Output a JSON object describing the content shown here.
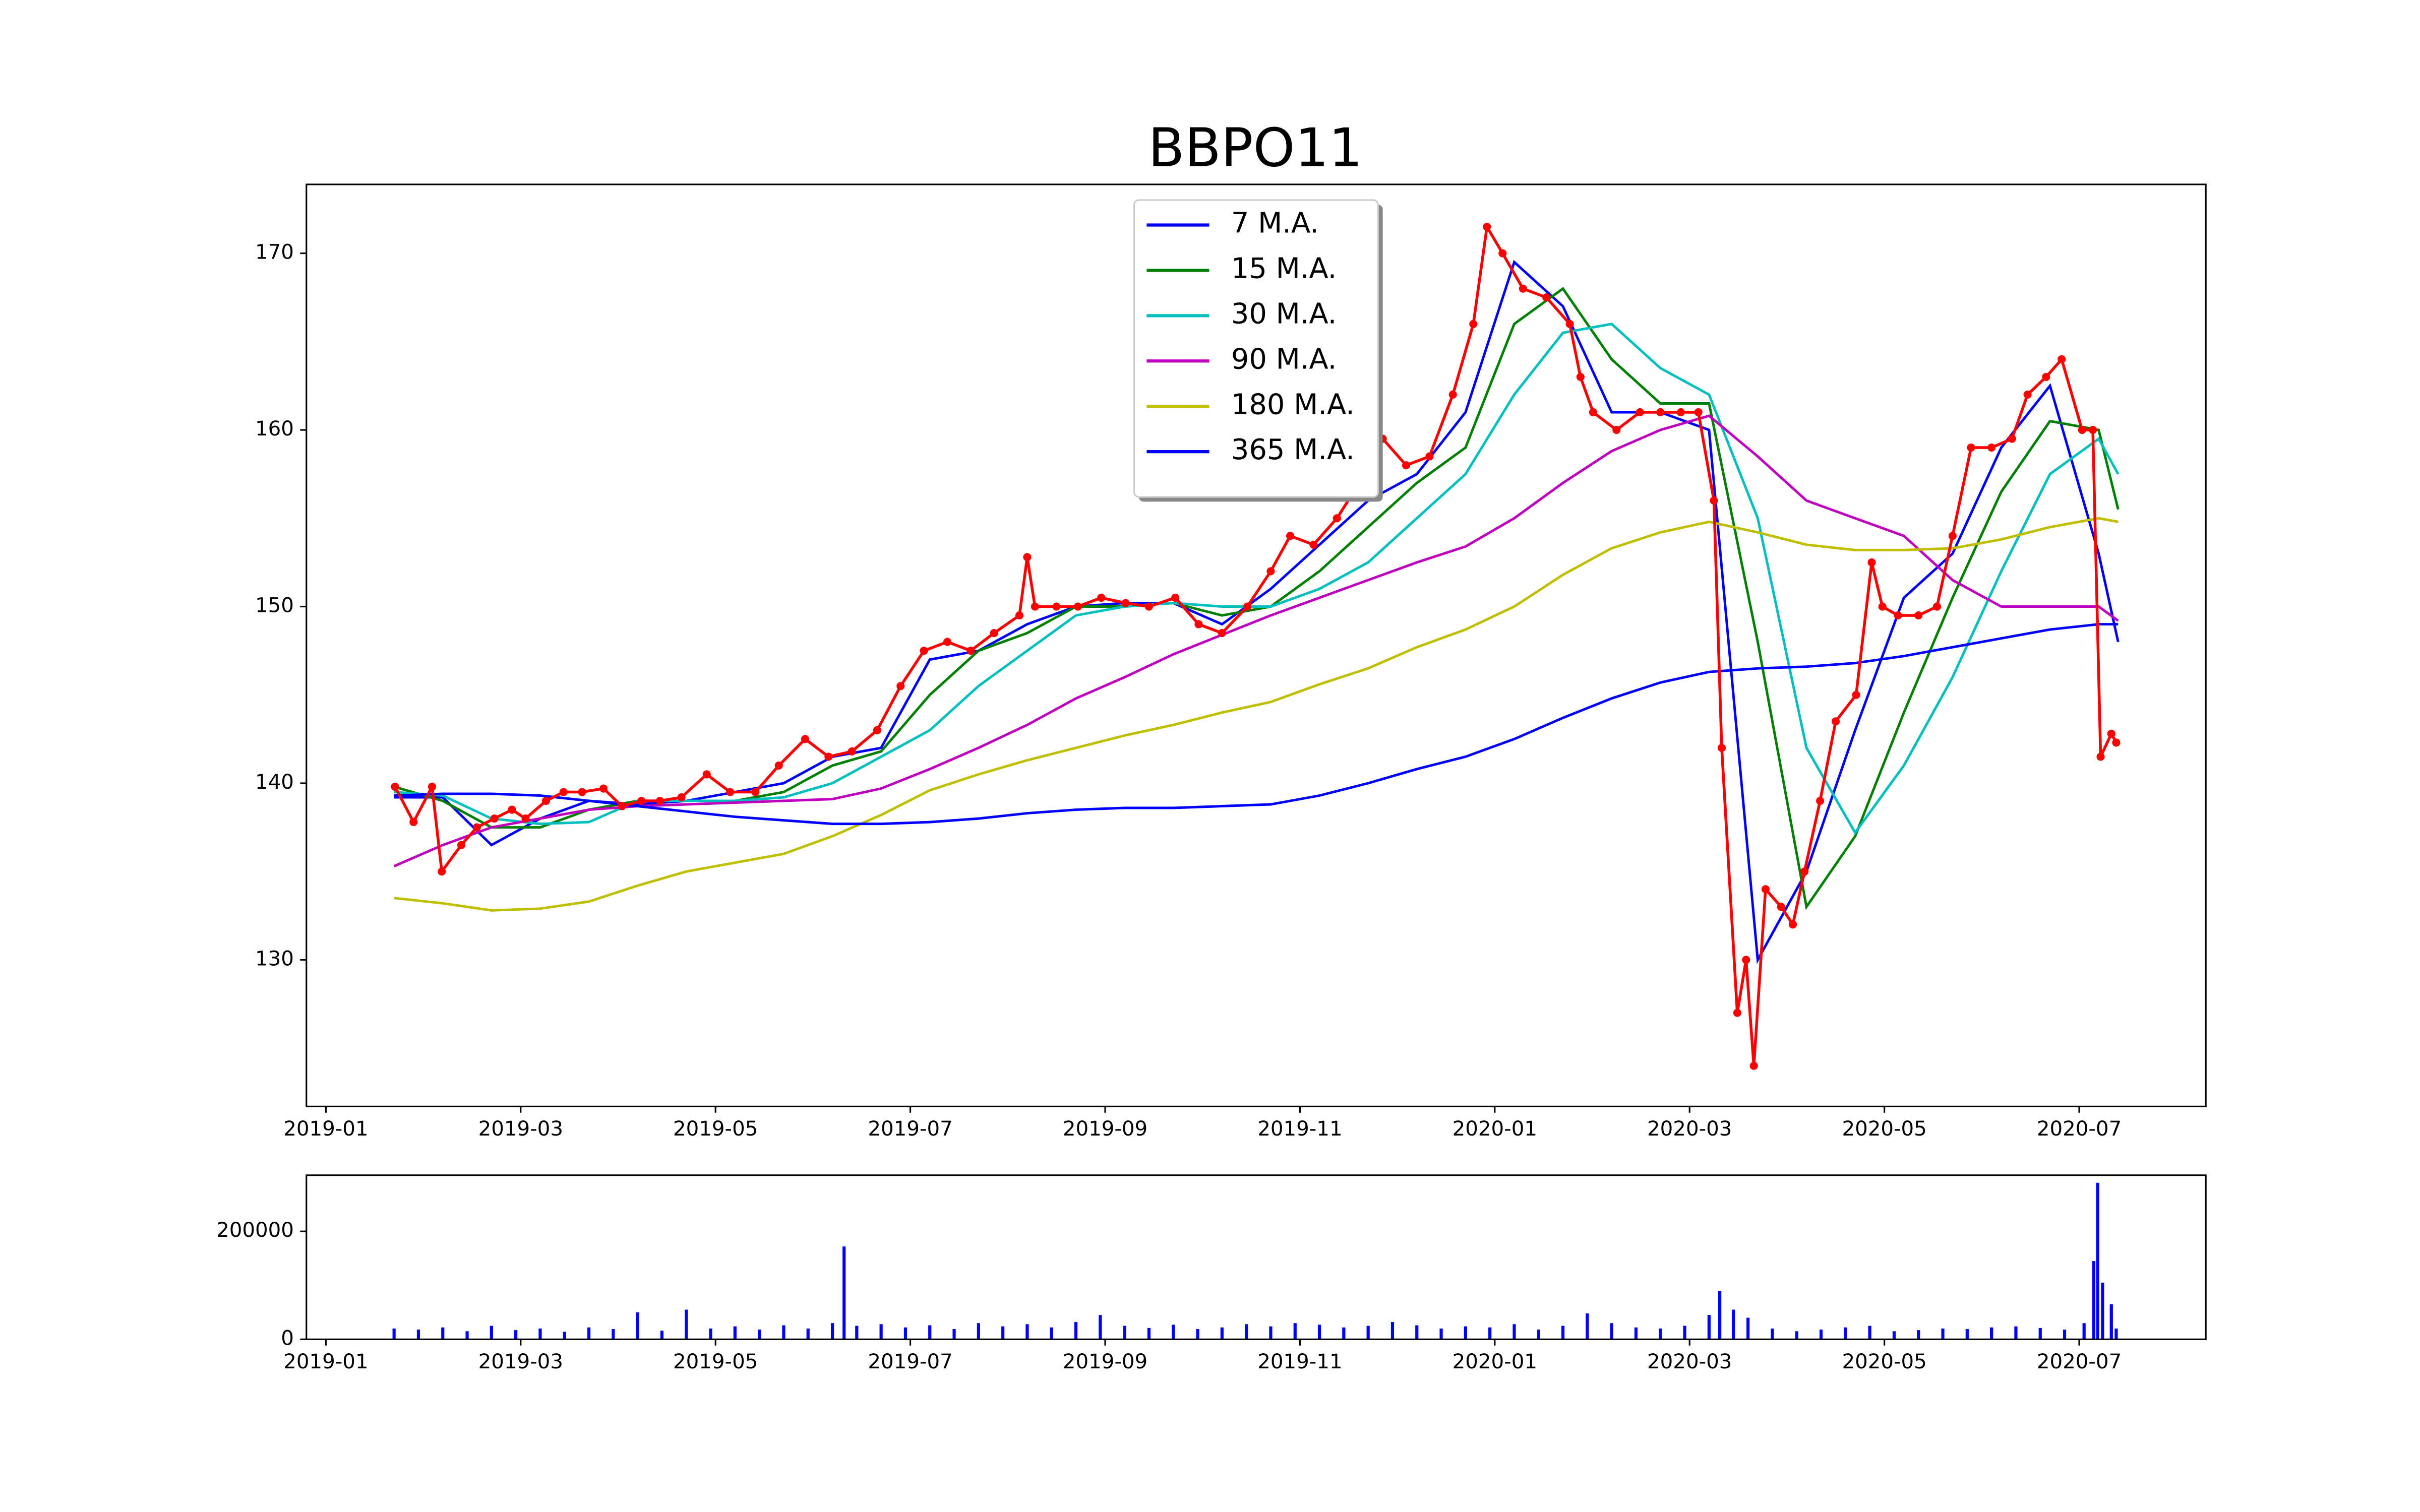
{
  "chart_data": [
    {
      "type": "line",
      "title": "BBPO11",
      "legend": "upper center",
      "xlim": [
        -0.2,
        19.3
      ],
      "xticks": [
        {
          "value": 0,
          "label": "2019-01"
        },
        {
          "value": 2,
          "label": "2019-03"
        },
        {
          "value": 4,
          "label": "2019-05"
        },
        {
          "value": 6,
          "label": "2019-07"
        },
        {
          "value": 8,
          "label": "2019-09"
        },
        {
          "value": 10,
          "label": "2019-11"
        },
        {
          "value": 12,
          "label": "2020-01"
        },
        {
          "value": 14,
          "label": "2020-03"
        },
        {
          "value": 16,
          "label": "2020-05"
        },
        {
          "value": 18,
          "label": "2020-07"
        }
      ],
      "ylim": [
        121.7,
        173.9
      ],
      "yticks": [
        130,
        140,
        150,
        160,
        170
      ],
      "x": [
        0.7,
        1.2,
        1.7,
        2.2,
        2.7,
        3.2,
        3.7,
        4.2,
        4.7,
        5.2,
        5.7,
        6.2,
        6.7,
        7.2,
        7.7,
        8.2,
        8.7,
        9.2,
        9.7,
        10.2,
        10.7,
        11.2,
        11.7,
        12.2,
        12.7,
        13.2,
        13.7,
        14.2,
        14.7,
        15.2,
        15.7,
        16.2,
        16.7,
        17.2,
        17.7,
        18.2,
        18.4
      ],
      "series": [
        {
          "name": "7 M.A.",
          "color": "#0000ff",
          "values": [
            139.2,
            139.2,
            136.5,
            138,
            139,
            138.8,
            139,
            139.5,
            140,
            141.5,
            142,
            147,
            147.5,
            149,
            150,
            150.2,
            150.2,
            149,
            151,
            153.5,
            156,
            157.5,
            161,
            169.5,
            167,
            161,
            161,
            160,
            130,
            135,
            143,
            150.5,
            153,
            159,
            162.5,
            153,
            148
          ]
        },
        {
          "name": "15 M.A.",
          "color": "#008000",
          "values": [
            139.8,
            139,
            137.5,
            137.5,
            138.5,
            139,
            139,
            139,
            139.5,
            141,
            141.8,
            145,
            147.5,
            148.5,
            150,
            150,
            150.2,
            149.5,
            150,
            152,
            154.5,
            157,
            159,
            166,
            168,
            164,
            161.5,
            161.5,
            148,
            133,
            137,
            144,
            150.5,
            156.5,
            160.5,
            160,
            155.5
          ]
        },
        {
          "name": "30 M.A.",
          "color": "#00bfbf",
          "values": [
            139.5,
            139.3,
            138,
            137.7,
            137.8,
            139,
            139,
            139,
            139.2,
            140,
            141.5,
            143,
            145.5,
            147.5,
            149.5,
            150,
            150.2,
            150,
            150,
            151,
            152.5,
            155,
            157.5,
            162,
            165.5,
            166,
            163.5,
            162,
            155,
            142,
            137.2,
            141,
            146,
            152,
            157.5,
            159.5,
            157.5
          ]
        },
        {
          "name": "90 M.A.",
          "color": "#bf00bf",
          "values": [
            135.3,
            136.5,
            137.5,
            138,
            138.5,
            138.7,
            138.8,
            138.9,
            139,
            139.1,
            139.7,
            140.8,
            142,
            143.3,
            144.8,
            146,
            147.3,
            148.4,
            149.5,
            150.5,
            151.5,
            152.5,
            153.4,
            155,
            157,
            158.8,
            160,
            160.8,
            158.5,
            156,
            155,
            154,
            151.5,
            150,
            150,
            150,
            149.2
          ]
        },
        {
          "name": "180 M.A.",
          "color": "#bfbf00",
          "values": [
            133.5,
            133.2,
            132.8,
            132.9,
            133.3,
            134.2,
            135,
            135.5,
            136,
            137,
            138.2,
            139.6,
            140.5,
            141.3,
            142,
            142.7,
            143.3,
            144,
            144.6,
            145.6,
            146.5,
            147.7,
            148.7,
            150,
            151.8,
            153.3,
            154.2,
            154.8,
            154.2,
            153.5,
            153.2,
            153.2,
            153.3,
            153.8,
            154.5,
            155,
            154.8
          ]
        },
        {
          "name": "365 M.A.",
          "color": "#0000ff",
          "values": [
            139.3,
            139.4,
            139.4,
            139.3,
            139,
            138.7,
            138.4,
            138.1,
            137.9,
            137.7,
            137.7,
            137.8,
            138,
            138.3,
            138.5,
            138.6,
            138.6,
            138.7,
            138.8,
            139.3,
            140,
            140.8,
            141.5,
            142.5,
            143.7,
            144.8,
            145.7,
            146.3,
            146.5,
            146.6,
            146.8,
            147.2,
            147.7,
            148.2,
            148.7,
            149,
            149
          ]
        }
      ],
      "price": {
        "color": "#ff0000",
        "marker": true,
        "x": [
          0.71,
          0.9,
          1.09,
          1.19,
          1.39,
          1.55,
          1.73,
          1.91,
          2.05,
          2.26,
          2.44,
          2.63,
          2.85,
          3.04,
          3.24,
          3.43,
          3.65,
          3.91,
          4.15,
          4.41,
          4.65,
          4.92,
          5.16,
          5.4,
          5.66,
          5.9,
          6.14,
          6.38,
          6.62,
          6.86,
          7.12,
          7.2,
          7.28,
          7.5,
          7.72,
          7.96,
          8.21,
          8.45,
          8.72,
          8.96,
          9.2,
          9.46,
          9.7,
          9.9,
          10.14,
          10.38,
          10.61,
          10.85,
          11.09,
          11.33,
          11.57,
          11.78,
          11.92,
          12.08,
          12.29,
          12.53,
          12.77,
          12.88,
          13.01,
          13.25,
          13.49,
          13.7,
          13.91,
          14.09,
          14.25,
          14.33,
          14.49,
          14.58,
          14.66,
          14.78,
          14.94,
          15.06,
          15.18,
          15.34,
          15.5,
          15.71,
          15.87,
          15.98,
          16.14,
          16.35,
          16.54,
          16.7,
          16.89,
          17.1,
          17.31,
          17.47,
          17.66,
          17.82,
          18.03,
          18.14,
          18.22,
          18.33,
          18.38
        ],
        "values": [
          139.8,
          137.8,
          139.8,
          135,
          136.5,
          137.5,
          138,
          138.5,
          138,
          139,
          139.5,
          139.5,
          139.7,
          138.7,
          139,
          139,
          139.2,
          140.5,
          139.5,
          139.5,
          141,
          142.5,
          141.5,
          141.8,
          143,
          145.5,
          147.5,
          148,
          147.5,
          148.5,
          149.5,
          152.8,
          150,
          150,
          150,
          150.5,
          150.2,
          150,
          150.5,
          149,
          148.5,
          150,
          152,
          154,
          153.5,
          155,
          157,
          159.5,
          158,
          158.5,
          162,
          166,
          171.5,
          170,
          168,
          167.5,
          166,
          163,
          161,
          160,
          161,
          161,
          161,
          161,
          156,
          142,
          127,
          130,
          124,
          134,
          133,
          132,
          135,
          139,
          143.5,
          145,
          152.5,
          150,
          149.5,
          149.5,
          150,
          154,
          159,
          159,
          159.5,
          162,
          163,
          164,
          160,
          160,
          141.5,
          142.8,
          142.3
        ]
      }
    },
    {
      "type": "bar",
      "color": "#0000ff",
      "xlim": [
        -0.2,
        19.3
      ],
      "xticks": [
        {
          "value": 0,
          "label": "2019-01"
        },
        {
          "value": 2,
          "label": "2019-03"
        },
        {
          "value": 4,
          "label": "2019-05"
        },
        {
          "value": 6,
          "label": "2019-07"
        },
        {
          "value": 8,
          "label": "2019-09"
        },
        {
          "value": 10,
          "label": "2019-11"
        },
        {
          "value": 12,
          "label": "2020-01"
        },
        {
          "value": 14,
          "label": "2020-03"
        },
        {
          "value": 16,
          "label": "2020-05"
        },
        {
          "value": 18,
          "label": "2020-07"
        }
      ],
      "ylim": [
        0,
        304000
      ],
      "yticks": [
        0,
        200000
      ],
      "x": [
        0.7,
        0.95,
        1.2,
        1.45,
        1.7,
        1.95,
        2.2,
        2.45,
        2.7,
        2.95,
        3.2,
        3.45,
        3.7,
        3.95,
        4.2,
        4.45,
        4.7,
        4.95,
        5.2,
        5.32,
        5.45,
        5.7,
        5.95,
        6.2,
        6.45,
        6.7,
        6.95,
        7.2,
        7.45,
        7.7,
        7.95,
        8.2,
        8.45,
        8.7,
        8.95,
        9.2,
        9.45,
        9.7,
        9.95,
        10.2,
        10.45,
        10.7,
        10.95,
        11.2,
        11.45,
        11.7,
        11.95,
        12.2,
        12.45,
        12.7,
        12.95,
        13.2,
        13.45,
        13.7,
        13.95,
        14.2,
        14.31,
        14.45,
        14.6,
        14.85,
        15.1,
        15.35,
        15.6,
        15.85,
        16.1,
        16.35,
        16.6,
        16.85,
        17.1,
        17.35,
        17.6,
        17.85,
        18.05,
        18.15,
        18.19,
        18.24,
        18.33,
        18.38
      ],
      "values": [
        20000,
        18000,
        22000,
        15000,
        25000,
        17000,
        20000,
        14000,
        22000,
        19000,
        50000,
        16000,
        55000,
        20000,
        24000,
        18000,
        26000,
        20000,
        30000,
        172000,
        25000,
        28000,
        22000,
        26000,
        19000,
        30000,
        24000,
        28000,
        22000,
        32000,
        45000,
        25000,
        21000,
        27000,
        19000,
        22000,
        28000,
        24000,
        30000,
        27000,
        22000,
        25000,
        32000,
        26000,
        20000,
        24000,
        22000,
        28000,
        18000,
        25000,
        48000,
        30000,
        22000,
        20000,
        25000,
        45000,
        90000,
        55000,
        40000,
        20000,
        15000,
        18000,
        22000,
        25000,
        15000,
        17000,
        20000,
        19000,
        22000,
        24000,
        21000,
        18000,
        30000,
        145000,
        290000,
        105000,
        65000,
        20000
      ]
    }
  ]
}
